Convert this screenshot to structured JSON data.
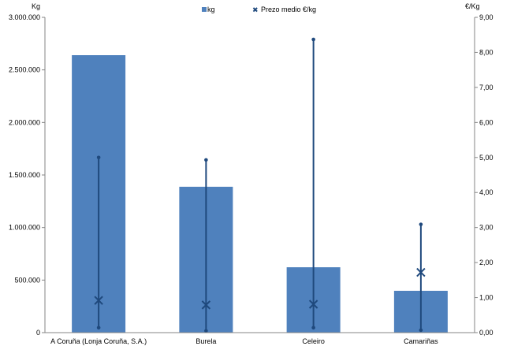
{
  "chart_data": {
    "type": "bar",
    "categories": [
      "A Coruña (Lonja Coruña, S.A.)",
      "Burela",
      "Celeiro",
      "Camariñas"
    ],
    "series": [
      {
        "name": "kg",
        "axis": "left",
        "type": "bar",
        "color": "#4F81BD",
        "values": [
          2640000,
          1388000,
          622000,
          398000
        ]
      },
      {
        "name": "Prezo medio €/kg",
        "axis": "right",
        "type": "marker-x",
        "color": "#1F497D",
        "values": [
          0.92,
          0.79,
          0.81,
          1.72
        ],
        "min": [
          0.14,
          0.05,
          0.14,
          0.07
        ],
        "max": [
          5.0,
          4.93,
          8.37,
          3.09
        ]
      }
    ],
    "y_left": {
      "label": "Kg",
      "range": [
        0,
        3000000
      ],
      "ticks": [
        "0",
        "500.000",
        "1.000.000",
        "1.500.000",
        "2.000.000",
        "2.500.000",
        "3.000.000"
      ]
    },
    "y_right": {
      "label": "€/Kg",
      "range": [
        0,
        9
      ],
      "ticks": [
        "0,00",
        "1,00",
        "2,00",
        "3,00",
        "4,00",
        "5,00",
        "6,00",
        "7,00",
        "8,00",
        "9,00"
      ]
    },
    "grid": false,
    "legend": {
      "placement": "top",
      "entries": [
        "kg",
        "Prezo medio €/kg"
      ]
    }
  }
}
